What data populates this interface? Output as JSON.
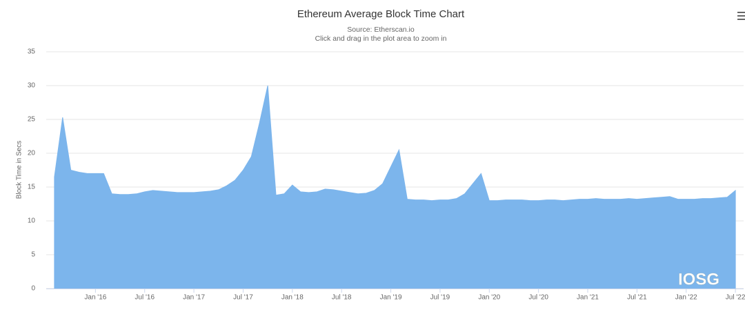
{
  "chart_data": {
    "type": "area",
    "title": "Ethereum Average Block Time Chart",
    "subtitle": [
      "Source: Etherscan.io",
      "Click and drag in the plot area to zoom in"
    ],
    "y_label": "Block Time in Secs",
    "watermark": "IOSG",
    "color": "#7cb5ec",
    "grid": true,
    "x": [
      "2015-08",
      "2015-09",
      "2015-10",
      "2015-11",
      "2015-12",
      "2016-01",
      "2016-02",
      "2016-03",
      "2016-04",
      "2016-05",
      "2016-06",
      "2016-07",
      "2016-08",
      "2016-09",
      "2016-10",
      "2016-11",
      "2016-12",
      "2017-01",
      "2017-02",
      "2017-03",
      "2017-04",
      "2017-05",
      "2017-06",
      "2017-07",
      "2017-08",
      "2017-09",
      "2017-10",
      "2017-11",
      "2017-12",
      "2018-01",
      "2018-02",
      "2018-03",
      "2018-04",
      "2018-05",
      "2018-06",
      "2018-07",
      "2018-08",
      "2018-09",
      "2018-10",
      "2018-11",
      "2018-12",
      "2019-01",
      "2019-02",
      "2019-03",
      "2019-04",
      "2019-05",
      "2019-06",
      "2019-07",
      "2019-08",
      "2019-09",
      "2019-10",
      "2019-11",
      "2019-12",
      "2020-01",
      "2020-02",
      "2020-03",
      "2020-04",
      "2020-05",
      "2020-06",
      "2020-07",
      "2020-08",
      "2020-09",
      "2020-10",
      "2020-11",
      "2020-12",
      "2021-01",
      "2021-02",
      "2021-03",
      "2021-04",
      "2021-05",
      "2021-06",
      "2021-07",
      "2021-08",
      "2021-09",
      "2021-10",
      "2021-11",
      "2021-12",
      "2022-01",
      "2022-02",
      "2022-03",
      "2022-04",
      "2022-05",
      "2022-06",
      "2022-07"
    ],
    "values": [
      16.5,
      25.3,
      17.5,
      17.2,
      17.0,
      17.0,
      17.0,
      14.0,
      13.9,
      13.9,
      14.0,
      14.3,
      14.5,
      14.4,
      14.3,
      14.2,
      14.2,
      14.2,
      14.3,
      14.4,
      14.6,
      15.2,
      16.0,
      17.5,
      19.5,
      24.5,
      30.0,
      13.8,
      14.0,
      15.3,
      14.3,
      14.2,
      14.3,
      14.7,
      14.6,
      14.4,
      14.2,
      14.0,
      14.1,
      14.5,
      15.5,
      18.0,
      20.5,
      13.2,
      13.1,
      13.1,
      13.0,
      13.1,
      13.1,
      13.3,
      14.0,
      15.5,
      17.0,
      13.0,
      13.0,
      13.1,
      13.1,
      13.1,
      13.0,
      13.0,
      13.1,
      13.1,
      13.0,
      13.1,
      13.2,
      13.2,
      13.3,
      13.2,
      13.2,
      13.2,
      13.3,
      13.2,
      13.3,
      13.4,
      13.5,
      13.6,
      13.2,
      13.2,
      13.2,
      13.3,
      13.3,
      13.4,
      13.5,
      14.5
    ],
    "xlim": [
      "2015-07",
      "2022-08"
    ],
    "xticks": [
      {
        "value": "2016-01",
        "label": "Jan '16"
      },
      {
        "value": "2016-07",
        "label": "Jul '16"
      },
      {
        "value": "2017-01",
        "label": "Jan '17"
      },
      {
        "value": "2017-07",
        "label": "Jul '17"
      },
      {
        "value": "2018-01",
        "label": "Jan '18"
      },
      {
        "value": "2018-07",
        "label": "Jul '18"
      },
      {
        "value": "2019-01",
        "label": "Jan '19"
      },
      {
        "value": "2019-07",
        "label": "Jul '19"
      },
      {
        "value": "2020-01",
        "label": "Jan '20"
      },
      {
        "value": "2020-07",
        "label": "Jul '20"
      },
      {
        "value": "2021-01",
        "label": "Jan '21"
      },
      {
        "value": "2021-07",
        "label": "Jul '21"
      },
      {
        "value": "2022-01",
        "label": "Jan '22"
      },
      {
        "value": "2022-07",
        "label": "Jul '22"
      }
    ],
    "ylim": [
      0,
      35
    ],
    "yticks": [
      0,
      5,
      10,
      15,
      20,
      25,
      30,
      35
    ]
  }
}
